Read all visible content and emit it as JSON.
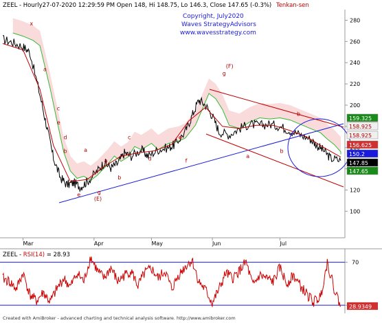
{
  "header": {
    "symbol": "ZEEL",
    "info": " - Hourly27-07-2020 12:29:59 PM Open 148, Hi 148.75, Lo 146.3, Close 147.65 (-0.3%)",
    "indicator": "Tenkan-sen"
  },
  "copyright": {
    "line1": "Copyright, July2020",
    "line2": "Waves StrategyAdvisors",
    "line3": "www.wavesstrategy.com"
  },
  "footer": "Created with AmiBroker - advanced charting and technical analysis software. http://www.amibroker.com",
  "rsi_header": {
    "symbol": "ZEEL",
    "sep": " - ",
    "name": "RSI(14)",
    "value": " = 28.93"
  },
  "colors": {
    "price": "#000000",
    "tenkan": "#c00000",
    "span_a": "#33bb33",
    "cloud": "#f7cccc",
    "trend_blue": "#1a1adc",
    "channel_red": "#c00000",
    "rsi_line": "#cc0000",
    "rsi_level": "#1a1adc"
  },
  "chart_data": [
    {
      "type": "line",
      "title": "ZEEL - Hourly",
      "x": [
        "Mar",
        "Apr",
        "May",
        "Jun",
        "Jul"
      ],
      "ylim": [
        75,
        290
      ],
      "y_ticks": [
        100,
        120,
        140,
        160,
        180,
        200,
        220,
        240,
        260,
        280
      ],
      "series": [
        {
          "name": "Close",
          "points": [
            [
              0.0,
              262
            ],
            [
              0.03,
              259
            ],
            [
              0.06,
              255
            ],
            [
              0.08,
              250
            ],
            [
              0.11,
              210
            ],
            [
              0.13,
              180
            ],
            [
              0.15,
              150
            ],
            [
              0.17,
              132
            ],
            [
              0.19,
              125
            ],
            [
              0.21,
              127
            ],
            [
              0.23,
              123
            ],
            [
              0.25,
              128
            ],
            [
              0.28,
              138
            ],
            [
              0.3,
              146
            ],
            [
              0.32,
              141
            ],
            [
              0.34,
              145
            ],
            [
              0.36,
              155
            ],
            [
              0.38,
              152
            ],
            [
              0.41,
              158
            ],
            [
              0.43,
              152
            ],
            [
              0.46,
              158
            ],
            [
              0.49,
              160
            ],
            [
              0.51,
              163
            ],
            [
              0.54,
              175
            ],
            [
              0.56,
              190
            ],
            [
              0.58,
              205
            ],
            [
              0.6,
              200
            ],
            [
              0.62,
              190
            ],
            [
              0.64,
              175
            ],
            [
              0.67,
              172
            ],
            [
              0.7,
              178
            ],
            [
              0.73,
              182
            ],
            [
              0.76,
              181
            ],
            [
              0.79,
              182
            ],
            [
              0.82,
              180
            ],
            [
              0.85,
              176
            ],
            [
              0.88,
              172
            ],
            [
              0.91,
              168
            ],
            [
              0.93,
              162
            ],
            [
              0.95,
              157
            ],
            [
              0.97,
              150
            ],
            [
              1.0,
              147.65
            ]
          ]
        },
        {
          "name": "Tenkan-sen",
          "points": [
            [
              0.0,
              258
            ],
            [
              0.06,
              252
            ],
            [
              0.11,
              215
            ],
            [
              0.15,
              162
            ],
            [
              0.2,
              128
            ],
            [
              0.25,
              130
            ],
            [
              0.3,
              142
            ],
            [
              0.35,
              152
            ],
            [
              0.4,
              155
            ],
            [
              0.45,
              157
            ],
            [
              0.5,
              163
            ],
            [
              0.55,
              185
            ],
            [
              0.6,
              198
            ],
            [
              0.65,
              180
            ],
            [
              0.7,
              178
            ],
            [
              0.75,
              181
            ],
            [
              0.8,
              181
            ],
            [
              0.85,
              176
            ],
            [
              0.9,
              170
            ],
            [
              0.95,
              160
            ],
            [
              1.0,
              151
            ]
          ]
        }
      ],
      "price_tags": [
        159.325,
        158.925,
        158.925,
        156.625,
        150.2,
        147.85,
        147.65
      ],
      "wave_labels": [
        "x",
        "a",
        "b",
        "c",
        "d",
        "e",
        "a",
        "b",
        "c",
        "d",
        "e",
        "f",
        "g",
        "(E)",
        "(F)",
        "g",
        "a",
        "b",
        "e",
        "a",
        "b"
      ]
    },
    {
      "type": "line",
      "title": "ZEEL - RSI(14) = 28.93",
      "ylim": [
        25,
        80
      ],
      "y_ticks": [
        30,
        70
      ],
      "levels": [
        30,
        70
      ],
      "series": [
        {
          "name": "RSI(14)",
          "points": [
            [
              0.0,
              55
            ],
            [
              0.02,
              52
            ],
            [
              0.04,
              45
            ],
            [
              0.06,
              60
            ],
            [
              0.08,
              40
            ],
            [
              0.1,
              34
            ],
            [
              0.12,
              42
            ],
            [
              0.14,
              33
            ],
            [
              0.16,
              45
            ],
            [
              0.18,
              55
            ],
            [
              0.2,
              47
            ],
            [
              0.22,
              60
            ],
            [
              0.24,
              52
            ],
            [
              0.26,
              75
            ],
            [
              0.28,
              62
            ],
            [
              0.3,
              55
            ],
            [
              0.32,
              65
            ],
            [
              0.34,
              52
            ],
            [
              0.36,
              58
            ],
            [
              0.38,
              62
            ],
            [
              0.4,
              48
            ],
            [
              0.42,
              60
            ],
            [
              0.44,
              64
            ],
            [
              0.46,
              55
            ],
            [
              0.48,
              62
            ],
            [
              0.5,
              45
            ],
            [
              0.52,
              58
            ],
            [
              0.54,
              66
            ],
            [
              0.56,
              72
            ],
            [
              0.58,
              52
            ],
            [
              0.6,
              44
            ],
            [
              0.62,
              32
            ],
            [
              0.64,
              45
            ],
            [
              0.66,
              60
            ],
            [
              0.68,
              55
            ],
            [
              0.7,
              62
            ],
            [
              0.72,
              70
            ],
            [
              0.74,
              48
            ],
            [
              0.76,
              58
            ],
            [
              0.78,
              55
            ],
            [
              0.8,
              52
            ],
            [
              0.82,
              65
            ],
            [
              0.84,
              50
            ],
            [
              0.86,
              58
            ],
            [
              0.88,
              48
            ],
            [
              0.9,
              40
            ],
            [
              0.92,
              33
            ],
            [
              0.94,
              38
            ],
            [
              0.96,
              70
            ],
            [
              0.98,
              46
            ],
            [
              1.0,
              28.93
            ]
          ]
        }
      ],
      "last_tag": 28.9349
    }
  ]
}
